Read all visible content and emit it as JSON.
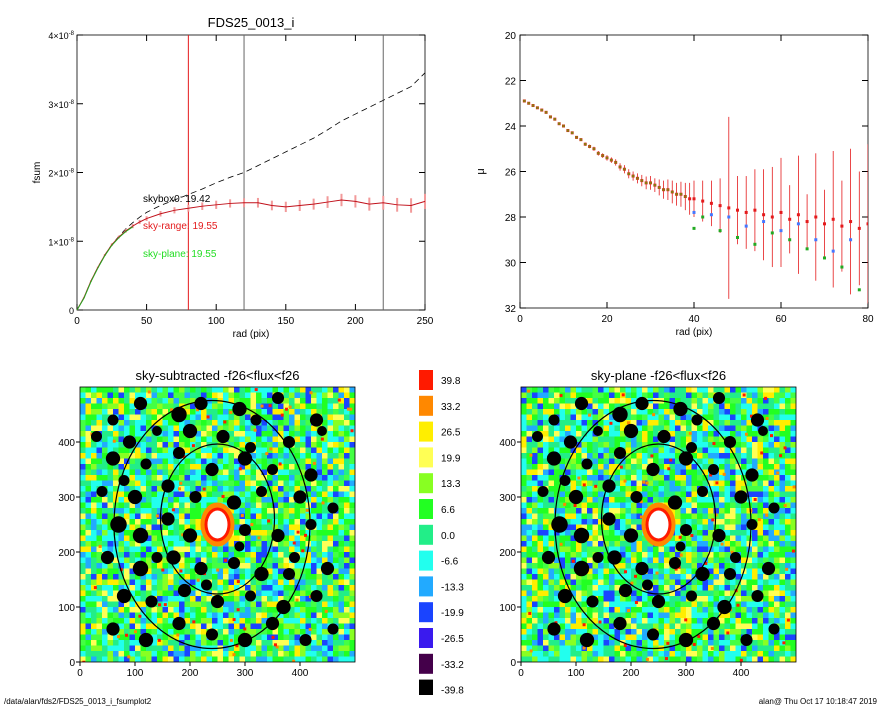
{
  "chart_data": [
    {
      "type": "line",
      "title": "FDS25_0013_i",
      "xlabel": "rad (pix)",
      "ylabel": "fsum",
      "xlim": [
        0,
        250
      ],
      "ylim": [
        0,
        4e-08
      ],
      "xticks": [
        "0",
        "50",
        "100",
        "150",
        "200",
        "250"
      ],
      "yticks": [
        {
          "base": "0",
          "exp": ""
        },
        {
          "base": "1×10",
          "exp": "-8"
        },
        {
          "base": "2×10",
          "exp": "-8"
        },
        {
          "base": "3×10",
          "exp": "-8"
        },
        {
          "base": "4×10",
          "exp": "-8"
        }
      ],
      "vlines": [
        {
          "x": 80,
          "color": "#e41a1c"
        },
        {
          "x": 120,
          "color": "#666666"
        },
        {
          "x": 220,
          "color": "#666666"
        }
      ],
      "annotations": [
        {
          "text": "skybox0: 19.42",
          "color": "#000000"
        },
        {
          "text": "sky-range: 19.55",
          "color": "#e41a1c"
        },
        {
          "text": "sky-plane: 19.55",
          "color": "#22dd22"
        }
      ],
      "series": [
        {
          "style": "dashed",
          "color": "#000000",
          "x": [
            0,
            5,
            10,
            15,
            20,
            25,
            30,
            35,
            40,
            45,
            50,
            60,
            70,
            80,
            90,
            100,
            110,
            120,
            130,
            140,
            150,
            160,
            170,
            180,
            190,
            200,
            210,
            220,
            230,
            240,
            250
          ],
          "y": [
            0,
            1.8e-09,
            4.2e-09,
            6.2e-09,
            8e-09,
            9.5e-09,
            1.07e-08,
            1.18e-08,
            1.27e-08,
            1.35e-08,
            1.42e-08,
            1.52e-08,
            1.6e-08,
            1.68e-08,
            1.76e-08,
            1.85e-08,
            1.93e-08,
            2e-08,
            2.1e-08,
            2.2e-08,
            2.3e-08,
            2.4e-08,
            2.5e-08,
            2.62e-08,
            2.75e-08,
            2.85e-08,
            2.95e-08,
            3.05e-08,
            3.15e-08,
            3.25e-08,
            3.45e-08
          ]
        },
        {
          "style": "errorbars",
          "color": "#e41a1c",
          "x": [
            0,
            5,
            10,
            15,
            20,
            25,
            30,
            35,
            40,
            45,
            50,
            60,
            70,
            80,
            90,
            100,
            110,
            120,
            130,
            140,
            150,
            160,
            170,
            180,
            190,
            200,
            210,
            220,
            230,
            240,
            250
          ],
          "y": [
            0,
            1.8e-09,
            4.2e-09,
            6.2e-09,
            8e-09,
            9.5e-09,
            1.06e-08,
            1.15e-08,
            1.22e-08,
            1.28e-08,
            1.33e-08,
            1.4e-08,
            1.45e-08,
            1.48e-08,
            1.51e-08,
            1.53e-08,
            1.55e-08,
            1.56e-08,
            1.56e-08,
            1.52e-08,
            1.5e-08,
            1.52e-08,
            1.54e-08,
            1.57e-08,
            1.6e-08,
            1.58e-08,
            1.54e-08,
            1.56e-08,
            1.53e-08,
            1.52e-08,
            1.58e-08
          ],
          "err": [
            0,
            5e-11,
            1e-10,
            1e-10,
            1.5e-10,
            2e-10,
            2e-10,
            2.5e-10,
            3e-10,
            3e-10,
            3.5e-10,
            4e-10,
            4.5e-10,
            5e-10,
            5.5e-10,
            6e-10,
            6e-10,
            6.5e-10,
            7e-10,
            7e-10,
            7.5e-10,
            8e-10,
            8e-10,
            8.5e-10,
            9e-10,
            9e-10,
            9.5e-10,
            1e-09,
            1e-09,
            1.05e-09,
            1.1e-09
          ]
        },
        {
          "style": "solid",
          "color": "#22aa22",
          "x": [
            0,
            5,
            10,
            15,
            20,
            25,
            30,
            35,
            40
          ],
          "y": [
            0,
            1.7e-09,
            4.1e-09,
            6.1e-09,
            7.9e-09,
            9.4e-09,
            1.05e-08,
            1.14e-08,
            1.21e-08
          ]
        }
      ]
    },
    {
      "type": "scatter",
      "xlabel": "rad (pix)",
      "ylabel": "μ",
      "xlim": [
        0,
        80
      ],
      "ylim": [
        32,
        20
      ],
      "xticks": [
        "0",
        "20",
        "40",
        "60",
        "80"
      ],
      "yticks": [
        "20",
        "22",
        "24",
        "26",
        "28",
        "30",
        "32"
      ],
      "series": [
        {
          "color": "#e41a1c",
          "x": [
            1,
            2,
            3,
            4,
            5,
            6,
            7,
            8,
            9,
            10,
            11,
            12,
            13,
            14,
            15,
            16,
            17,
            18,
            19,
            20,
            21,
            22,
            23,
            24,
            25,
            26,
            27,
            28,
            29,
            30,
            31,
            32,
            33,
            34,
            35,
            36,
            37,
            38,
            39,
            40,
            42,
            44,
            46,
            48,
            50,
            52,
            54,
            56,
            58,
            60,
            62,
            64,
            66,
            68,
            70,
            72,
            74,
            76,
            78,
            80
          ],
          "y": [
            22.9,
            23.0,
            23.1,
            23.2,
            23.3,
            23.4,
            23.6,
            23.7,
            23.9,
            24.0,
            24.2,
            24.3,
            24.5,
            24.6,
            24.8,
            24.9,
            25.0,
            25.2,
            25.3,
            25.4,
            25.5,
            25.6,
            25.8,
            25.9,
            26.1,
            26.2,
            26.3,
            26.4,
            26.5,
            26.5,
            26.6,
            26.7,
            26.8,
            26.8,
            26.9,
            27.0,
            27.0,
            27.1,
            27.2,
            27.2,
            27.3,
            27.4,
            27.5,
            27.6,
            27.7,
            27.8,
            27.7,
            27.9,
            28.0,
            27.8,
            28.1,
            27.9,
            28.2,
            28.0,
            28.3,
            28.1,
            28.4,
            28.2,
            28.5,
            28.3
          ],
          "err": [
            0.02,
            0.02,
            0.02,
            0.03,
            0.03,
            0.03,
            0.04,
            0.04,
            0.04,
            0.05,
            0.05,
            0.05,
            0.06,
            0.06,
            0.07,
            0.08,
            0.09,
            0.1,
            0.1,
            0.12,
            0.12,
            0.14,
            0.16,
            0.18,
            0.2,
            0.2,
            0.22,
            0.25,
            0.28,
            0.3,
            0.3,
            0.35,
            0.4,
            0.45,
            0.5,
            0.5,
            0.55,
            0.6,
            0.7,
            0.8,
            0.9,
            1.0,
            1.2,
            4.0,
            1.5,
            1.6,
            1.8,
            2.0,
            2.2,
            2.4,
            1.5,
            2.6,
            1.2,
            2.8,
            1.5,
            3.0,
            2.0,
            3.2,
            2.5,
            3.5
          ]
        },
        {
          "color": "#22aa22",
          "x": [
            40,
            42,
            46,
            50,
            54,
            58,
            62,
            66,
            70,
            74,
            78
          ],
          "y": [
            28.5,
            28.0,
            28.6,
            28.9,
            29.2,
            28.7,
            29.0,
            29.4,
            29.8,
            30.2,
            31.2
          ]
        },
        {
          "color": "#4477ff",
          "x": [
            40,
            44,
            48,
            52,
            56,
            60,
            64,
            68,
            72,
            76
          ],
          "y": [
            27.8,
            27.9,
            28.0,
            28.4,
            28.2,
            28.6,
            28.3,
            29.0,
            29.5,
            29.0
          ]
        }
      ]
    },
    {
      "type": "heatmap",
      "title": "sky-subtracted -f26<flux<f26",
      "xlim": [
        0,
        500
      ],
      "ylim": [
        0,
        500
      ],
      "xticks": [
        "0",
        "100",
        "200",
        "300",
        "400"
      ],
      "yticks": [
        "0",
        "100",
        "200",
        "300",
        "400"
      ]
    },
    {
      "type": "heatmap",
      "title": "sky-plane -f26<flux<f26",
      "xlim": [
        0,
        500
      ],
      "ylim": [
        0,
        500
      ],
      "xticks": [
        "0",
        "100",
        "200",
        "300",
        "400"
      ],
      "yticks": [
        "0",
        "100",
        "200",
        "300",
        "400"
      ]
    }
  ],
  "colorbar": {
    "labels": [
      "39.8",
      "33.2",
      "26.5",
      "19.9",
      "13.3",
      "6.6",
      "0.0",
      "-6.6",
      "-13.3",
      "-19.9",
      "-26.5",
      "-33.2",
      "-39.8"
    ],
    "colors": [
      "#ff1a00",
      "#ff8800",
      "#ffee00",
      "#ffff55",
      "#88ff22",
      "#22ff22",
      "#22ee88",
      "#22ffee",
      "#22aaff",
      "#1a44ff",
      "#3a1aee",
      "#44004a",
      "#000000"
    ]
  },
  "footer": {
    "left": "/data/alan/fds2/FDS25_0013_i_fsumplot2",
    "right": "alan@  Thu Oct 17 10:18:47 2019"
  }
}
